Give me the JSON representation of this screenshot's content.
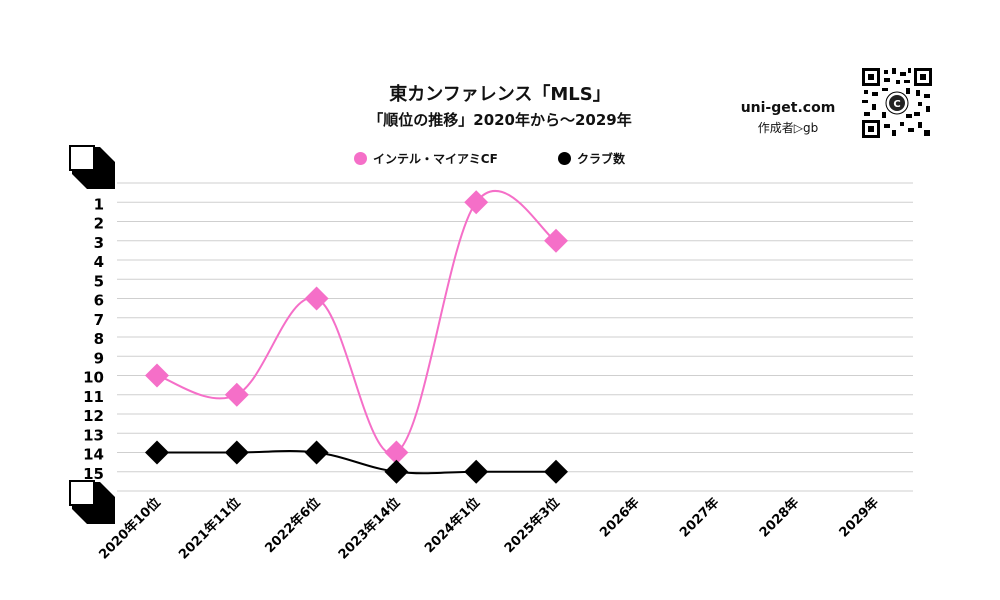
{
  "chart_data": {
    "type": "line",
    "title": "東カンファレンス「MLS」",
    "subtitle": "「順位の推移」2020年から～2029年",
    "categories": [
      "2020年10位",
      "2021年11位",
      "2022年6位",
      "2023年14位",
      "2024年1位",
      "2025年3位",
      "2026年",
      "2027年",
      "2028年",
      "2029年"
    ],
    "y_ticks": [
      "1",
      "2",
      "3",
      "4",
      "5",
      "6",
      "7",
      "8",
      "9",
      "10",
      "11",
      "12",
      "13",
      "14",
      "15"
    ],
    "ylim": [
      0,
      16
    ],
    "y_inverted": true,
    "grid": true,
    "legend_position": "top-center",
    "series": [
      {
        "name": "インテル・マイアミCF",
        "color": "#f56fc8",
        "values": [
          10,
          11,
          6,
          14,
          1,
          3,
          null,
          null,
          null,
          null
        ]
      },
      {
        "name": "クラブ数",
        "color": "#000000",
        "values": [
          14,
          14,
          14,
          15,
          15,
          15,
          null,
          null,
          null,
          null
        ]
      }
    ]
  },
  "site": {
    "url": "uni-get.com",
    "author": "作成者▷gb"
  },
  "qr_label": "C"
}
